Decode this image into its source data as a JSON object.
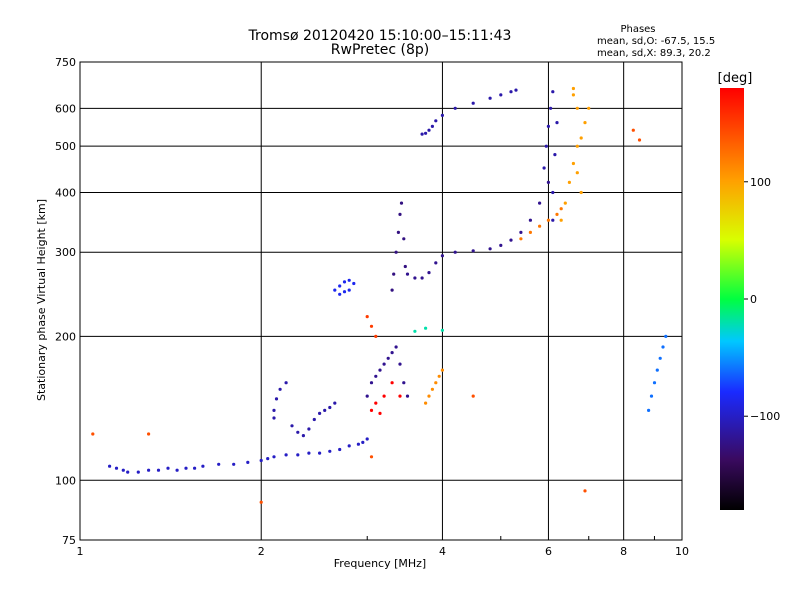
{
  "chart_data": {
    "type": "scatter",
    "title": "Tromsø 20120420 15:10:00–15:11:43",
    "subtitle": "RwPretec (8p)",
    "xlabel": "Frequency [MHz]",
    "ylabel": "Stationary phase Virtual Height [km]",
    "xscale": "log",
    "yscale": "log",
    "xlim": [
      1,
      10
    ],
    "ylim": [
      75,
      750
    ],
    "grid": true,
    "x_ticks": [
      1,
      2,
      4,
      6,
      8,
      10
    ],
    "x_tick_labels": [
      "1",
      "2",
      "4",
      "6",
      "8",
      "10"
    ],
    "y_ticks": [
      75,
      100,
      200,
      300,
      400,
      500,
      600,
      750
    ],
    "y_tick_labels": [
      "75",
      "100",
      "200",
      "300",
      "400",
      "500",
      "600",
      "750"
    ],
    "phases_info": {
      "title": "Phases",
      "line_o": "mean, sd,O: -67.5, 15.5",
      "line_x": "mean, sd,X:  89.3, 20.2"
    },
    "colorbar": {
      "label": "[deg]",
      "range": [
        -180,
        180
      ],
      "ticks": [
        100,
        0,
        -100
      ],
      "tick_labels": [
        "100",
        "0",
        "−100"
      ],
      "colormap": "rainbow: black → purple → blue → cyan → green → yellow → orange → red"
    },
    "series": [
      {
        "phase": -100,
        "x": [
          1.12,
          1.15,
          1.18,
          1.2,
          1.25,
          1.3,
          1.35,
          1.4,
          1.45,
          1.5,
          1.55,
          1.6,
          1.7,
          1.8,
          1.9,
          2.0,
          2.05,
          2.1,
          2.2,
          2.3,
          2.4,
          2.5,
          2.6,
          2.7,
          2.8,
          2.9,
          2.95,
          3.0
        ],
        "y": [
          107,
          106,
          105,
          104,
          104,
          105,
          105,
          106,
          105,
          106,
          106,
          107,
          108,
          108,
          109,
          110,
          111,
          112,
          113,
          113,
          114,
          114,
          115,
          116,
          118,
          119,
          120,
          122
        ]
      },
      {
        "phase": -110,
        "x": [
          2.1,
          2.1,
          2.12,
          2.15,
          2.2,
          2.25,
          2.3,
          2.35,
          2.4,
          2.45,
          2.5,
          2.55,
          2.6,
          2.65
        ],
        "y": [
          135,
          140,
          148,
          155,
          160,
          130,
          126,
          124,
          128,
          134,
          138,
          140,
          142,
          145
        ]
      },
      {
        "phase": -85,
        "x": [
          2.65,
          2.7,
          2.75,
          2.8,
          2.85,
          2.7,
          2.75,
          2.8
        ],
        "y": [
          250,
          255,
          260,
          262,
          258,
          245,
          248,
          250
        ]
      },
      {
        "phase": -120,
        "x": [
          3.0,
          3.05,
          3.1,
          3.15,
          3.2,
          3.25,
          3.3,
          3.35,
          3.4,
          3.45,
          3.5
        ],
        "y": [
          150,
          160,
          165,
          170,
          175,
          180,
          185,
          190,
          175,
          160,
          150
        ]
      },
      {
        "phase": -125,
        "x": [
          3.3,
          3.32,
          3.35,
          3.38,
          3.4,
          3.42,
          3.45,
          3.47
        ],
        "y": [
          250,
          270,
          300,
          330,
          360,
          380,
          320,
          280
        ]
      },
      {
        "phase": -120,
        "x": [
          3.5,
          3.6,
          3.7,
          3.8,
          3.9,
          4.0,
          4.2,
          4.5,
          4.8,
          5.0,
          5.2,
          5.4,
          5.6,
          5.8,
          6.0
        ],
        "y": [
          270,
          265,
          265,
          272,
          285,
          295,
          300,
          302,
          305,
          310,
          318,
          330,
          350,
          380,
          420
        ]
      },
      {
        "phase": -110,
        "x": [
          5.9,
          5.95,
          6.0,
          6.05,
          6.1,
          6.1,
          6.1,
          6.15,
          6.2
        ],
        "y": [
          450,
          500,
          550,
          600,
          650,
          400,
          350,
          480,
          560
        ]
      },
      {
        "phase": -110,
        "x": [
          3.7,
          3.75,
          3.8,
          3.85,
          3.9,
          4.0,
          4.2,
          4.5,
          4.8,
          5.0,
          5.2,
          5.3
        ],
        "y": [
          530,
          532,
          540,
          550,
          565,
          580,
          600,
          615,
          630,
          640,
          650,
          655
        ]
      },
      {
        "phase": 100,
        "x": [
          6.3,
          6.4,
          6.5,
          6.6,
          6.7,
          6.8,
          6.9,
          7.0,
          6.6,
          6.6,
          6.7,
          6.7,
          6.8
        ],
        "y": [
          350,
          380,
          420,
          460,
          500,
          520,
          560,
          600,
          640,
          660,
          600,
          440,
          400
        ]
      },
      {
        "phase": 120,
        "x": [
          5.4,
          5.6,
          5.8,
          6.0,
          6.2,
          6.3
        ],
        "y": [
          320,
          330,
          340,
          350,
          360,
          370
        ]
      },
      {
        "phase": 110,
        "x": [
          3.75,
          3.8,
          3.85,
          3.9,
          3.95,
          4.0
        ],
        "y": [
          145,
          150,
          155,
          160,
          165,
          170
        ]
      },
      {
        "phase": 150,
        "x": [
          3.0,
          3.05,
          3.1
        ],
        "y": [
          220,
          210,
          200
        ]
      },
      {
        "phase": 180,
        "x": [
          3.05,
          3.1,
          3.15,
          3.2,
          3.3,
          3.4
        ],
        "y": [
          140,
          145,
          138,
          150,
          160,
          150
        ]
      },
      {
        "phase": -20,
        "x": [
          3.6,
          3.75,
          4.0
        ],
        "y": [
          205,
          208,
          206
        ]
      },
      {
        "phase": -60,
        "x": [
          8.8,
          8.9,
          9.0,
          9.1,
          9.2,
          9.3,
          9.4
        ],
        "y": [
          140,
          150,
          160,
          170,
          180,
          190,
          200
        ]
      },
      {
        "phase": 140,
        "x": [
          1.05,
          1.3,
          2.0,
          3.05,
          4.5,
          6.9,
          8.3,
          8.5
        ],
        "y": [
          125,
          125,
          90,
          112,
          150,
          95,
          540,
          515
        ]
      }
    ]
  }
}
